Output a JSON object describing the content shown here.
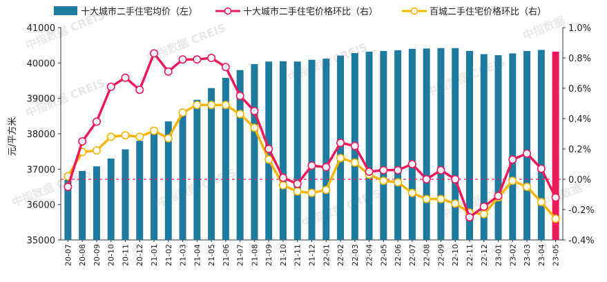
{
  "chart_data": {
    "type": "bar+line",
    "categories": [
      "20-07",
      "20-08",
      "20-09",
      "20-10",
      "20-11",
      "20-12",
      "21-01",
      "21-02",
      "21-03",
      "21-04",
      "21-05",
      "21-06",
      "21-07",
      "21-08",
      "21-09",
      "21-10",
      "21-11",
      "21-12",
      "22-01",
      "22-02",
      "22-03",
      "22-04",
      "22-05",
      "22-06",
      "22-07",
      "22-08",
      "22-09",
      "22-10",
      "22-11",
      "22-12",
      "23-01",
      "23-02",
      "23-03",
      "23-04",
      "23-05"
    ],
    "series": [
      {
        "name": "十大城市二手住宅均价（左）",
        "type": "bar",
        "axis": "left",
        "color": "#1f7aa0",
        "highlight_color": "#f0195a",
        "highlight_last": true,
        "values": [
          36700,
          36950,
          37080,
          37300,
          37560,
          37800,
          38060,
          38350,
          38640,
          38960,
          39290,
          39580,
          39800,
          39970,
          40040,
          40050,
          40040,
          40090,
          40120,
          40210,
          40280,
          40320,
          40340,
          40360,
          40400,
          40410,
          40420,
          40420,
          40340,
          40250,
          40220,
          40270,
          40340,
          40370,
          40320
        ]
      },
      {
        "name": "十大城市二手住宅价格环比（右）",
        "type": "line",
        "axis": "right",
        "color": "#f0195a",
        "values": [
          -0.05,
          0.25,
          0.38,
          0.61,
          0.67,
          0.59,
          0.83,
          0.71,
          0.79,
          0.79,
          0.8,
          0.74,
          0.55,
          0.45,
          0.2,
          0.01,
          -0.03,
          0.09,
          0.08,
          0.24,
          0.22,
          0.05,
          0.06,
          0.06,
          0.1,
          0.0,
          0.06,
          0.0,
          -0.25,
          -0.18,
          -0.11,
          0.13,
          0.17,
          0.07,
          -0.12
        ]
      },
      {
        "name": "百城二手住宅价格环比（右）",
        "type": "line",
        "axis": "right",
        "color": "#f7b500",
        "values": [
          0.02,
          0.18,
          0.19,
          0.28,
          0.29,
          0.28,
          0.32,
          0.27,
          0.44,
          0.49,
          0.49,
          0.49,
          0.43,
          0.34,
          0.13,
          -0.04,
          -0.08,
          -0.09,
          -0.07,
          0.14,
          0.11,
          0.03,
          -0.01,
          -0.02,
          -0.09,
          -0.13,
          -0.13,
          -0.16,
          -0.22,
          -0.23,
          -0.12,
          -0.01,
          -0.05,
          -0.15,
          -0.26
        ]
      }
    ],
    "ylabel": "元/平方米",
    "ylim_left": [
      35000,
      41000
    ],
    "yticks_left": [
      "35000",
      "36000",
      "37000",
      "38000",
      "39000",
      "40000",
      "41000"
    ],
    "ylim_right": [
      -0.4,
      1.0
    ],
    "yticks_right": [
      "-0.4%",
      "-0.2%",
      "0.0%",
      "0.2%",
      "0.4%",
      "0.6%",
      "0.8%",
      "1.0%"
    ],
    "zero_reference_line": true,
    "legend_position": "top",
    "grid": false
  },
  "watermark": {
    "text": "中指数据 CREIS",
    "text_short": "中指数据"
  }
}
